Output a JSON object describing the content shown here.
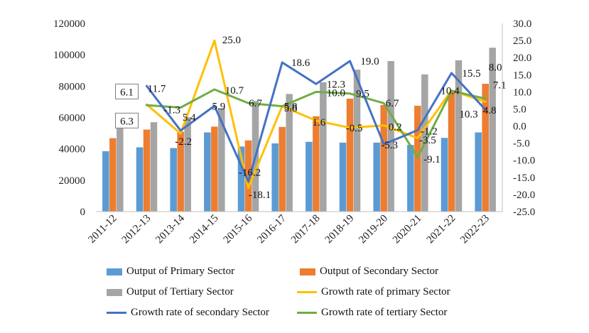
{
  "chart_data": {
    "type": "bar+line",
    "categories": [
      "2011-12",
      "2012-13",
      "2013-14",
      "2014-15",
      "2015-16",
      "2016-17",
      "2017-18",
      "2018-19",
      "2019-20",
      "2020-21",
      "2021-22",
      "2022-23"
    ],
    "left_axis": {
      "min": 0,
      "max": 120000,
      "step": 20000,
      "ticks": [
        "0",
        "20000",
        "40000",
        "60000",
        "80000",
        "100000",
        "120000"
      ]
    },
    "right_axis": {
      "min": -25,
      "max": 30,
      "step": 5,
      "ticks": [
        "-25.0",
        "-20.0",
        "-15.0",
        "-10.0",
        "-5.0",
        "0.0",
        "5.0",
        "10.0",
        "15.0",
        "20.0",
        "25.0",
        "30.0"
      ]
    },
    "bar_series": [
      {
        "name": "Output of Primary Sector",
        "color": "#5B9BD5",
        "values": [
          38500,
          41000,
          40500,
          50500,
          41500,
          43500,
          44500,
          44000,
          44000,
          42500,
          47000,
          50500
        ]
      },
      {
        "name": "Output of Secondary Sector",
        "color": "#ED7D31",
        "values": [
          46800,
          52300,
          51000,
          54200,
          45400,
          54000,
          60800,
          72000,
          68000,
          67500,
          76000,
          81500
        ]
      },
      {
        "name": "Output of Tertiary Sector",
        "color": "#A5A5A5",
        "values": [
          53500,
          57000,
          60200,
          66000,
          70500,
          75000,
          82500,
          90500,
          96000,
          87500,
          96500,
          104500
        ]
      }
    ],
    "line_series": [
      {
        "name": "Growth rate of primary Sector",
        "color": "#FFC000",
        "values": [
          null,
          6.3,
          -2.2,
          25.0,
          -18.1,
          5.8,
          1.6,
          -0.5,
          0.2,
          -3.5,
          10.4,
          7.1
        ]
      },
      {
        "name": "Growth rate of secondary Sector",
        "color": "#4472C4",
        "values": [
          null,
          11.7,
          -1.3,
          5.9,
          -16.2,
          18.6,
          12.3,
          19.0,
          -5.3,
          -1.2,
          15.5,
          4.8
        ]
      },
      {
        "name": "Growth rate of tertiary Sector",
        "color": "#70AD47",
        "values": [
          null,
          6.1,
          5.4,
          10.7,
          6.7,
          5.8,
          10.0,
          9.5,
          6.7,
          -9.1,
          10.3,
          8.0
        ]
      }
    ],
    "data_labels": [
      {
        "text": "6.1",
        "cat": 1,
        "val": 10.0,
        "dx": -28,
        "boxed": true
      },
      {
        "text": "11.7",
        "cat": 1,
        "val": 11.0,
        "dx": 14,
        "boxed": false
      },
      {
        "text": "6.3",
        "cat": 1,
        "val": 1.5,
        "dx": -28,
        "boxed": true
      },
      {
        "text": "-1.3",
        "cat": 2,
        "val": 4.8,
        "dx": -12,
        "boxed": false
      },
      {
        "text": "5.4",
        "cat": 2,
        "val": 2.6,
        "dx": 12,
        "boxed": false
      },
      {
        "text": "-2.2",
        "cat": 2,
        "val": -4.5,
        "dx": 4,
        "boxed": false
      },
      {
        "text": "25.0",
        "cat": 3,
        "val": 25.2,
        "dx": 24,
        "boxed": false
      },
      {
        "text": "10.7",
        "cat": 3,
        "val": 10.5,
        "dx": 28,
        "boxed": false
      },
      {
        "text": "5.9",
        "cat": 3,
        "val": 5.8,
        "dx": 6,
        "boxed": false
      },
      {
        "text": "6.7",
        "cat": 4,
        "val": 6.8,
        "dx": 10,
        "boxed": false
      },
      {
        "text": "-16.2",
        "cat": 4,
        "val": -13.5,
        "dx": 2,
        "boxed": false
      },
      {
        "text": "-18.1",
        "cat": 4,
        "val": -20.0,
        "dx": 16,
        "boxed": false
      },
      {
        "text": "5.8",
        "cat": 5,
        "val": 5.8,
        "dx": 12,
        "boxed": false
      },
      {
        "text": "5.8",
        "cat": 5,
        "val": 5.3,
        "dx": 12,
        "boxed": false
      },
      {
        "text": "18.6",
        "cat": 5,
        "val": 18.6,
        "dx": 26,
        "boxed": false
      },
      {
        "text": "12.3",
        "cat": 6,
        "val": 12.3,
        "dx": 28,
        "boxed": false
      },
      {
        "text": "10.0",
        "cat": 6,
        "val": 9.8,
        "dx": 28,
        "boxed": false
      },
      {
        "text": "1.6",
        "cat": 6,
        "val": 1.2,
        "dx": 4,
        "boxed": false
      },
      {
        "text": "19.0",
        "cat": 7,
        "val": 19.0,
        "dx": 28,
        "boxed": false
      },
      {
        "text": "9.5",
        "cat": 7,
        "val": 9.6,
        "dx": 18,
        "boxed": false
      },
      {
        "text": "-0.5",
        "cat": 7,
        "val": -0.5,
        "dx": 6,
        "boxed": false
      },
      {
        "text": "6.7",
        "cat": 8,
        "val": 6.8,
        "dx": 12,
        "boxed": false
      },
      {
        "text": "0.2",
        "cat": 8,
        "val": -0.2,
        "dx": 16,
        "boxed": false
      },
      {
        "text": "-5.3",
        "cat": 8,
        "val": -5.5,
        "dx": 8,
        "boxed": false
      },
      {
        "text": "-1.2",
        "cat": 9,
        "val": -1.4,
        "dx": 16,
        "boxed": false
      },
      {
        "text": "-3.5",
        "cat": 9,
        "val": -4.0,
        "dx": 14,
        "boxed": false
      },
      {
        "text": "-9.1",
        "cat": 9,
        "val": -9.6,
        "dx": 20,
        "boxed": false
      },
      {
        "text": "10.4",
        "cat": 10,
        "val": 10.4,
        "dx": -2,
        "boxed": false
      },
      {
        "text": "15.5",
        "cat": 10,
        "val": 15.5,
        "dx": 28,
        "boxed": false
      },
      {
        "text": "10.3",
        "cat": 10,
        "val": 3.5,
        "dx": 24,
        "boxed": false
      },
      {
        "text": "8.0",
        "cat": 11,
        "val": 17.2,
        "dx": 14,
        "boxed": false
      },
      {
        "text": "7.1",
        "cat": 11,
        "val": 12.1,
        "dx": 20,
        "boxed": false
      },
      {
        "text": "4.8",
        "cat": 11,
        "val": 4.7,
        "dx": 6,
        "boxed": false
      }
    ]
  }
}
